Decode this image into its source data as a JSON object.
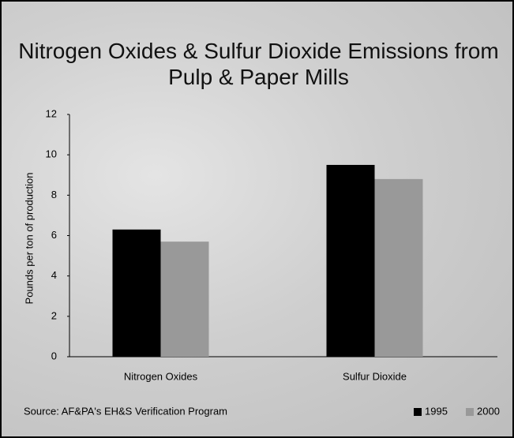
{
  "chart_data": {
    "type": "bar",
    "title": "Nitrogen Oxides & Sulfur Dioxide Emissions from Pulp & Paper Mills",
    "y_label": "Pounds per ton of production",
    "categories": [
      "Nitrogen Oxides",
      "Sulfur Dioxide"
    ],
    "series": [
      {
        "name": "1995",
        "color": "#000000",
        "values": [
          6.3,
          9.5
        ]
      },
      {
        "name": "2000",
        "color": "#999999",
        "values": [
          5.7,
          8.8
        ]
      }
    ],
    "ylim": [
      0,
      12
    ],
    "yticks": [
      0,
      2,
      4,
      6,
      8,
      10,
      12
    ],
    "source": "Source: AF&PA's EH&S Verification Program",
    "legend": "bottom-right"
  }
}
